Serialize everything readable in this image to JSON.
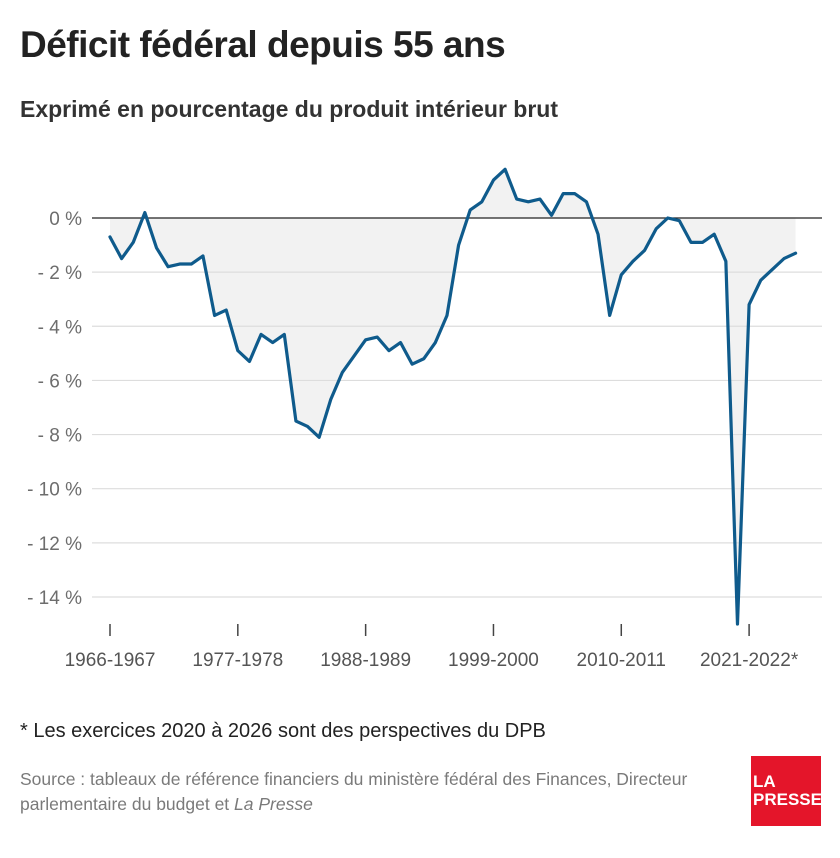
{
  "chart_data": {
    "type": "area",
    "title": "Déficit fédéral depuis 55 ans",
    "subtitle": "Exprimé en pourcentage du produit intérieur brut",
    "x": [
      "1966-1967",
      "1967-1968",
      "1968-1969",
      "1969-1970",
      "1970-1971",
      "1971-1972",
      "1972-1973",
      "1973-1974",
      "1974-1975",
      "1975-1976",
      "1976-1977",
      "1977-1978",
      "1978-1979",
      "1979-1980",
      "1980-1981",
      "1981-1982",
      "1982-1983",
      "1983-1984",
      "1984-1985",
      "1985-1986",
      "1986-1987",
      "1987-1988",
      "1988-1989",
      "1989-1990",
      "1990-1991",
      "1991-1992",
      "1992-1993",
      "1993-1994",
      "1994-1995",
      "1995-1996",
      "1996-1997",
      "1997-1998",
      "1998-1999",
      "1999-2000",
      "2000-2001",
      "2001-2002",
      "2002-2003",
      "2003-2004",
      "2004-2005",
      "2005-2006",
      "2006-2007",
      "2007-2008",
      "2008-2009",
      "2009-2010",
      "2010-2011",
      "2011-2012",
      "2012-2013",
      "2013-2014",
      "2014-2015",
      "2015-2016",
      "2016-2017",
      "2017-2018",
      "2018-2019",
      "2019-2020",
      "2020-2021",
      "2021-2022",
      "2022-2023",
      "2023-2024",
      "2024-2025",
      "2025-2026"
    ],
    "values": [
      -0.7,
      -1.5,
      -0.9,
      0.2,
      -1.1,
      -1.8,
      -1.7,
      -1.7,
      -1.4,
      -3.6,
      -3.4,
      -4.9,
      -5.3,
      -4.3,
      -4.6,
      -4.3,
      -7.5,
      -7.7,
      -8.1,
      -6.7,
      -5.7,
      -5.1,
      -4.5,
      -4.4,
      -4.9,
      -4.6,
      -5.4,
      -5.2,
      -4.6,
      -3.6,
      -1.0,
      0.3,
      0.6,
      1.4,
      1.8,
      0.7,
      0.6,
      0.7,
      0.1,
      0.9,
      0.9,
      0.6,
      -0.6,
      -3.6,
      -2.1,
      -1.6,
      -1.2,
      -0.4,
      0.0,
      -0.1,
      -0.9,
      -0.9,
      -0.6,
      -1.6,
      -15.0,
      -3.2,
      -2.3,
      -1.9,
      -1.5,
      -1.3
    ],
    "y_ticks": [
      "0 %",
      "- 2 %",
      "- 4 %",
      "- 6 %",
      "- 8 %",
      "- 10 %",
      "- 12 %",
      "- 14 %"
    ],
    "y_tick_values": [
      0,
      -2,
      -4,
      -6,
      -8,
      -10,
      -12,
      -14
    ],
    "x_tick_labels": [
      "1966-1967",
      "1977-1978",
      "1988-1989",
      "1999-2000",
      "2010-2011",
      "2021-2022*"
    ],
    "x_tick_indices": [
      0,
      11,
      22,
      33,
      44,
      55
    ],
    "ylim": [
      -15.5,
      2.0
    ],
    "grid": true,
    "colors": {
      "line": "#0f5b8c",
      "area": "#f2f2f2",
      "grid": "#dddddd",
      "zero": "#222222"
    }
  },
  "footnote": "* Les exercices 2020 à 2026 sont des perspectives du DPB",
  "source_prefix": "Source : tableaux de référence financiers du ministère fédéral des Finances, Directeur parlementaire du budget et ",
  "source_italic": "La Presse",
  "logo_line1": "LA",
  "logo_line2": "PRESSE"
}
